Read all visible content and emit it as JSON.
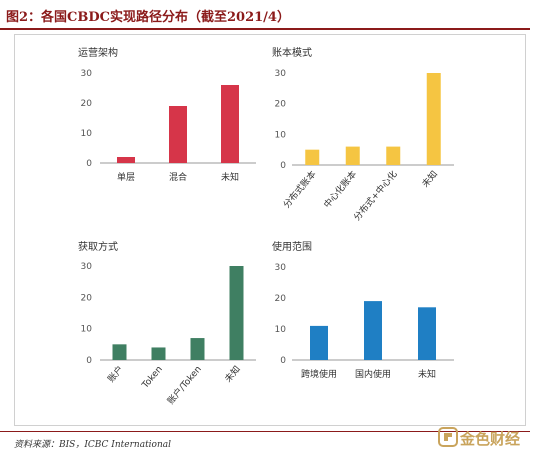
{
  "title": "图2：各国CBDC实现路径分布（截至2021/4）",
  "source": "资料来源：BIS，ICBC International",
  "watermark": "金色财经",
  "chart_data": [
    {
      "type": "bar",
      "title": "运营架构",
      "categories": [
        "单层",
        "混合",
        "未知"
      ],
      "values": [
        2,
        19,
        26
      ],
      "ylim": [
        0,
        30
      ],
      "yticks": [
        0,
        10,
        20,
        30
      ],
      "color": "#d63549",
      "grid": false
    },
    {
      "type": "bar",
      "title": "账本模式",
      "categories": [
        "分布式账本",
        "中心化账本",
        "分布式+中心化",
        "未知"
      ],
      "values": [
        5,
        6,
        6,
        30
      ],
      "ylim": [
        0,
        30
      ],
      "yticks": [
        0,
        10,
        20,
        30
      ],
      "color": "#f5c542",
      "grid": false
    },
    {
      "type": "bar",
      "title": "获取方式",
      "categories": [
        "账户",
        "Token",
        "账户/Token",
        "未知"
      ],
      "values": [
        5,
        4,
        7,
        30
      ],
      "ylim": [
        0,
        30
      ],
      "yticks": [
        0,
        10,
        20,
        30
      ],
      "color": "#3f7f62",
      "grid": false
    },
    {
      "type": "bar",
      "title": "使用范围",
      "categories": [
        "跨境使用",
        "国内使用",
        "未知"
      ],
      "values": [
        11,
        19,
        17
      ],
      "ylim": [
        0,
        30
      ],
      "yticks": [
        0,
        10,
        20,
        30
      ],
      "color": "#1f7fc4",
      "grid": false
    }
  ]
}
